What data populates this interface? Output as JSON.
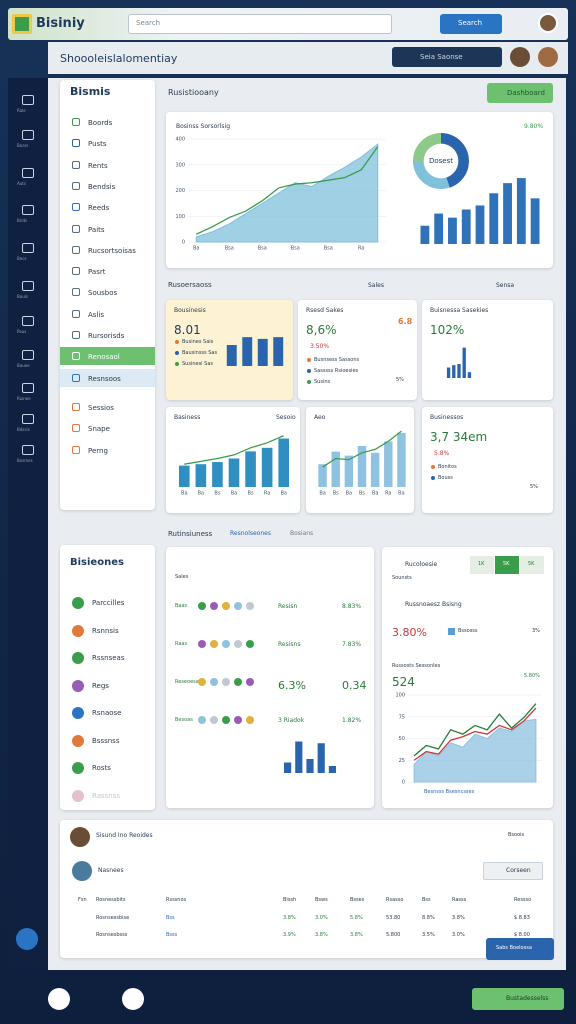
{
  "header": {
    "logo": "Bisiniy",
    "search": "Search",
    "button": "Search"
  },
  "subheader": {
    "title": "Shoooleislalomentiay",
    "search": "Seia Saonse"
  },
  "rail": [
    "Rale",
    "Boars",
    "Auts",
    "Brids",
    "Becs",
    "Bouls",
    "Paus",
    "Bauoe",
    "Ruinee",
    "Bdssis",
    "Bosmes"
  ],
  "sidebar": {
    "title": "Bismis",
    "active": 11,
    "items": [
      "Boords",
      "Pusts",
      "Rents",
      "Bendsis",
      "Reeds",
      "Paits",
      "Rucsortsoisas",
      "Pasrt",
      "Sousbos",
      "Aslis",
      "Rursorisds",
      "Renosaol",
      "Resnsoos",
      "Sessios",
      "Snape",
      "Perng"
    ]
  },
  "overview": {
    "title": "Rusistiooany",
    "button": "Dashboard",
    "card_title": "Bosinss Sorsorlsig",
    "card_value": "9.80%",
    "area": {
      "type": "area",
      "categories": [
        "Ba",
        null,
        "Bsa",
        null,
        "Bsa",
        null,
        "Bsa",
        null,
        "Bsa",
        null,
        "Ra",
        null
      ],
      "ylim": [
        0,
        400
      ],
      "yticks": [
        0,
        100,
        200,
        300,
        400
      ],
      "series": [
        {
          "type": "area",
          "color": "#7fc0da",
          "values": [
            20,
            40,
            70,
            110,
            150,
            190,
            230,
            215,
            255,
            290,
            330,
            380
          ]
        },
        {
          "type": "line",
          "color": "#3a9d4c",
          "values": [
            30,
            60,
            95,
            120,
            160,
            210,
            225,
            230,
            240,
            250,
            280,
            370
          ]
        }
      ]
    },
    "donut": {
      "type": "pie",
      "label": "Dosest",
      "values": [
        45,
        30,
        25
      ],
      "colors": [
        "#2a64ad",
        "#7fc0da",
        "#8cc98a"
      ]
    },
    "bars": {
      "type": "bar",
      "ylim": [
        0,
        70
      ],
      "series": [
        {
          "type": "bar",
          "color": "#2f72b8",
          "values": [
            18,
            30,
            26,
            34,
            38,
            50,
            60,
            65,
            45
          ]
        }
      ]
    }
  },
  "metrics": {
    "title": "Rusoersaoss",
    "links": [
      "Sensa",
      "Sales"
    ],
    "cards": [
      {
        "title": "Bousinesis",
        "value": "8.01",
        "bullets": [
          "Busines Sais",
          "Bausinsss Sas",
          "Susinesi Sas"
        ],
        "chart": {
          "type": "bar",
          "ylim": [
            0,
            40
          ],
          "series": [
            {
              "type": "bar",
              "color": "#2a64ad",
              "values": [
                24,
                33,
                31,
                33
              ]
            }
          ]
        }
      },
      {
        "title": "Rsesd Sakes",
        "badge": "6.8",
        "value": "8,6%",
        "sub": "3.50%",
        "bullets": [
          "Busnsess Sassons",
          "Sasssss Rsioesies",
          "Susins"
        ],
        "note": "5%"
      },
      {
        "title": "Buisnessa Sasekies",
        "value": "102%",
        "chart": {
          "type": "bar",
          "ylim": [
            0,
            60
          ],
          "series": [
            {
              "type": "bar",
              "color": "#2a64ad",
              "values": [
                18,
                22,
                24,
                52,
                10
              ]
            }
          ]
        }
      },
      {
        "title": "Basiness",
        "side": "Sesoio",
        "chart": {
          "type": "bar",
          "ylim": [
            0,
            80
          ],
          "categories": [
            "Ba",
            "Ba",
            "Bs",
            "Ba",
            "Bs",
            "Ra",
            "Ba"
          ],
          "series": [
            {
              "type": "bar",
              "color": "#2e8fc0",
              "values": [
                30,
                32,
                35,
                40,
                50,
                55,
                68
              ]
            },
            {
              "type": "line",
              "color": "#3a9d4c",
              "values": [
                32,
                36,
                40,
                45,
                55,
                62,
                72
              ]
            }
          ]
        }
      },
      {
        "title": "Aeo",
        "chart": {
          "type": "bar",
          "ylim": [
            0,
            100
          ],
          "categories": [
            "Ba",
            "Bs",
            "Ba",
            "Bs",
            "Ba",
            "Ra",
            "Ba"
          ],
          "series": [
            {
              "type": "bar",
              "color": "#8ec2e0",
              "values": [
                40,
                62,
                55,
                72,
                60,
                80,
                95
              ]
            },
            {
              "type": "line",
              "color": "#3a9d4c",
              "values": [
                35,
                50,
                48,
                60,
                66,
                80,
                98
              ]
            }
          ]
        }
      },
      {
        "title": "Businessos",
        "value": "3,7 34em",
        "sub": "5.8%",
        "bullets": [
          "Bonitos",
          "Bouss"
        ],
        "note": "5%"
      }
    ]
  },
  "activity": {
    "title": "Rutinsiuness",
    "crumbs": [
      "Resnolseones",
      "Bosians"
    ],
    "list_title": "Bisieones",
    "list": [
      "Parccilles",
      "Rsnnsis",
      "Rssnseas",
      "Regs",
      "Rsnaose",
      "Bsssnss",
      "Rosts",
      "Rassnss"
    ],
    "grid": {
      "title": "Sales",
      "rows": [
        {
          "label": "Baas",
          "mid": "Resisn",
          "value": "8.83%"
        },
        {
          "label": "Raas",
          "mid": "Resisns",
          "value": "7.83%"
        },
        {
          "label": "Reseoesas",
          "mid": "6.3%",
          "value": "0.34"
        },
        {
          "label": "Besoas",
          "mid": "3 Riadok",
          "value": "1.82%"
        }
      ],
      "chart": {
        "type": "bar",
        "ylim": [
          0,
          100
        ],
        "series": [
          {
            "type": "bar",
            "color": "#2a64ad",
            "values": [
              30,
              90,
              40,
              85,
              20
            ]
          }
        ]
      }
    },
    "panel": {
      "tabs": [
        "1K",
        "5K",
        "5K"
      ],
      "active_tab": 1,
      "title": "Rucoloesie",
      "sub": "Sounsts",
      "row_title": "Russnoaesz Bsisng",
      "value": "3.80%",
      "legend": "Bssosss",
      "note": "3%",
      "chart_title": "Russosts Sessonles",
      "chart_value": "524",
      "chart_note": "5.80%",
      "legend2": "Besnsss Bsesncsses",
      "chart": {
        "type": "line",
        "ylim": [
          0,
          100
        ],
        "yticks": [
          0,
          25,
          50,
          75,
          100
        ],
        "series": [
          {
            "type": "area",
            "color": "#8ec2e0",
            "values": [
              20,
              35,
              30,
              45,
              40,
              55,
              50,
              62,
              58,
              70,
              72
            ]
          },
          {
            "type": "line",
            "color": "#2a7a3a",
            "values": [
              30,
              42,
              38,
              60,
              55,
              65,
              60,
              78,
              62,
              74,
              90
            ]
          },
          {
            "type": "line",
            "color": "#c8383a",
            "values": [
              25,
              35,
              32,
              48,
              52,
              58,
              55,
              65,
              60,
              70,
              85
            ]
          }
        ]
      }
    }
  },
  "table": {
    "title": "Sisund Ino Reoides",
    "user": "Nasnees",
    "link": "Bsoois",
    "button": "Corseen",
    "columns": [
      "Fsn",
      "Rosnessbits",
      "Rsssnos",
      "Bissh",
      "Bsws",
      "Bsses",
      "Rsasso",
      "Bss",
      "Rasss",
      "Ressso"
    ],
    "rows": [
      [
        "Rosnsessbise",
        "Bss",
        "3.8%",
        "3.0%",
        "5.8%",
        "53.80",
        "8.8%",
        "3.8%",
        "$ 8.83"
      ],
      [
        "Rosnsesbsss",
        "Bsss",
        "3.9%",
        "3.8%",
        "3.8%",
        "5.800",
        "3.5%",
        "3.0%",
        "$ 8.00"
      ]
    ],
    "action": "Sabs Boelossa"
  },
  "footer": {
    "button": "Bustadesselss"
  }
}
